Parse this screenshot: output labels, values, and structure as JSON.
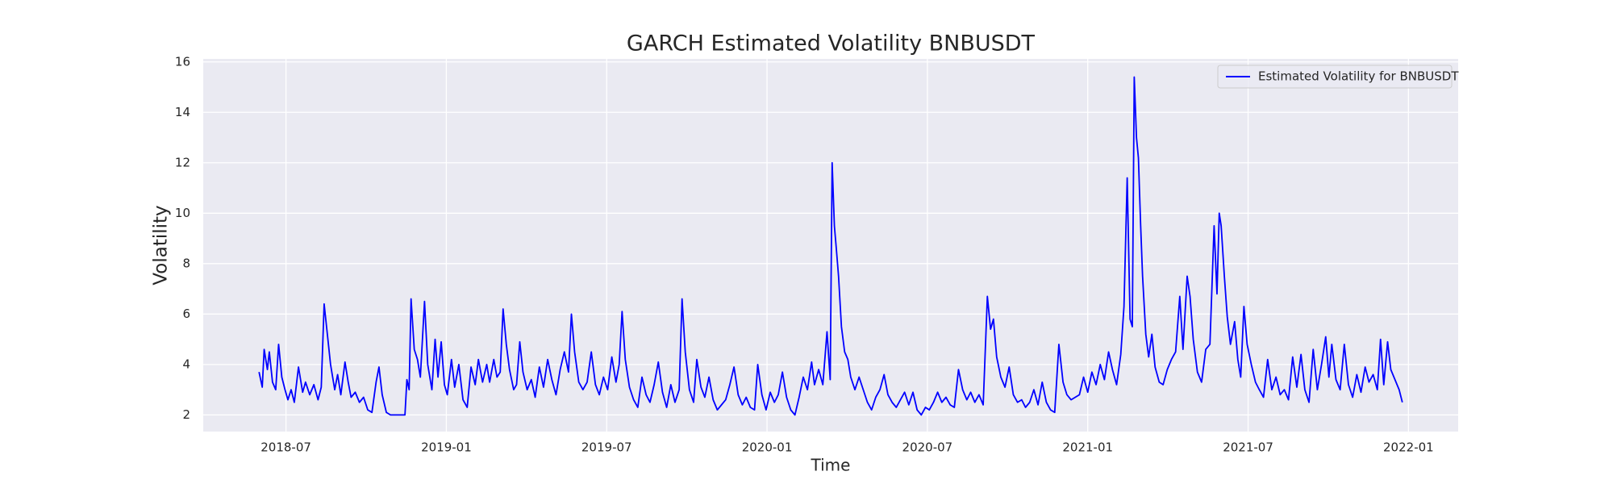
{
  "chart_data": {
    "type": "line",
    "title": "GARCH Estimated Volatility BNBUSDT",
    "xlabel": "Time",
    "ylabel": "Volatility",
    "x": [
      2018.416,
      2018.426,
      2018.432,
      2018.442,
      2018.448,
      2018.458,
      2018.468,
      2018.477,
      2018.487,
      2018.497,
      2018.506,
      2018.516,
      2018.526,
      2018.539,
      2018.552,
      2018.561,
      2018.574,
      2018.587,
      2018.6,
      2018.61,
      2018.619,
      2018.629,
      2018.639,
      2018.652,
      2018.661,
      2018.671,
      2018.684,
      2018.694,
      2018.703,
      2018.716,
      2018.729,
      2018.742,
      2018.755,
      2018.768,
      2018.781,
      2018.79,
      2018.8,
      2018.813,
      2018.826,
      2018.842,
      2018.858,
      2018.871,
      2018.877,
      2018.884,
      2018.89,
      2018.9,
      2018.91,
      2018.919,
      2018.932,
      2018.942,
      2018.955,
      2018.965,
      2018.974,
      2018.984,
      2018.994,
      2019.003,
      2019.016,
      2019.026,
      2019.039,
      2019.052,
      2019.065,
      2019.077,
      2019.09,
      2019.1,
      2019.113,
      2019.126,
      2019.135,
      2019.148,
      2019.158,
      2019.168,
      2019.177,
      2019.187,
      2019.197,
      2019.21,
      2019.219,
      2019.229,
      2019.239,
      2019.252,
      2019.265,
      2019.277,
      2019.29,
      2019.303,
      2019.316,
      2019.329,
      2019.342,
      2019.355,
      2019.368,
      2019.381,
      2019.39,
      2019.4,
      2019.413,
      2019.426,
      2019.439,
      2019.452,
      2019.465,
      2019.477,
      2019.49,
      2019.503,
      2019.516,
      2019.529,
      2019.539,
      2019.548,
      2019.558,
      2019.571,
      2019.584,
      2019.597,
      2019.61,
      2019.623,
      2019.635,
      2019.648,
      2019.661,
      2019.674,
      2019.687,
      2019.7,
      2019.713,
      2019.726,
      2019.735,
      2019.745,
      2019.758,
      2019.771,
      2019.781,
      2019.794,
      2019.806,
      2019.819,
      2019.832,
      2019.845,
      2019.858,
      2019.871,
      2019.884,
      2019.897,
      2019.91,
      2019.923,
      2019.935,
      2019.948,
      2019.961,
      2019.971,
      2019.984,
      2019.997,
      2020.01,
      2020.023,
      2020.035,
      2020.048,
      2020.061,
      2020.074,
      2020.087,
      2020.1,
      2020.113,
      2020.126,
      2020.139,
      2020.148,
      2020.161,
      2020.174,
      2020.187,
      2020.197,
      2020.203,
      2020.21,
      2020.216,
      2020.223,
      2020.232,
      2020.242,
      2020.252,
      2020.261,
      2020.274,
      2020.287,
      2020.3,
      2020.313,
      2020.326,
      2020.339,
      2020.352,
      2020.365,
      2020.377,
      2020.39,
      2020.403,
      2020.416,
      2020.429,
      2020.442,
      2020.455,
      2020.468,
      2020.481,
      2020.494,
      2020.506,
      2020.519,
      2020.532,
      2020.545,
      2020.558,
      2020.571,
      2020.584,
      2020.597,
      2020.61,
      2020.623,
      2020.635,
      2020.648,
      2020.661,
      2020.674,
      2020.687,
      2020.697,
      2020.706,
      2020.716,
      2020.729,
      2020.742,
      2020.755,
      2020.768,
      2020.781,
      2020.794,
      2020.806,
      2020.819,
      2020.832,
      2020.845,
      2020.858,
      2020.871,
      2020.884,
      2020.897,
      2020.91,
      2020.923,
      2020.935,
      2020.948,
      2020.961,
      2020.974,
      2020.987,
      2021.0,
      2021.013,
      2021.026,
      2021.039,
      2021.052,
      2021.065,
      2021.077,
      2021.09,
      2021.103,
      2021.113,
      2021.123,
      2021.132,
      2021.139,
      2021.145,
      2021.152,
      2021.158,
      2021.165,
      2021.171,
      2021.181,
      2021.19,
      2021.2,
      2021.21,
      2021.223,
      2021.235,
      2021.248,
      2021.261,
      2021.274,
      2021.287,
      2021.297,
      2021.31,
      2021.319,
      2021.329,
      2021.342,
      2021.355,
      2021.368,
      2021.381,
      2021.394,
      2021.403,
      2021.41,
      2021.416,
      2021.426,
      2021.435,
      2021.445,
      2021.458,
      2021.468,
      2021.477,
      2021.487,
      2021.497,
      2021.51,
      2021.523,
      2021.535,
      2021.548,
      2021.561,
      2021.574,
      2021.587,
      2021.6,
      2021.613,
      2021.626,
      2021.639,
      2021.652,
      2021.665,
      2021.677,
      2021.69,
      2021.703,
      2021.716,
      2021.729,
      2021.742,
      2021.752,
      2021.761,
      2021.774,
      2021.787,
      2021.8,
      2021.813,
      2021.826,
      2021.839,
      2021.852,
      2021.865,
      2021.877,
      2021.89,
      2021.903,
      2021.913,
      2021.923,
      2021.935,
      2021.945,
      2021.958,
      2021.971,
      2021.981
    ],
    "series": [
      {
        "name": "Estimated Volatility for BNBUSDT",
        "color": "#0000ff",
        "values": [
          3.7,
          3.1,
          4.6,
          3.8,
          4.5,
          3.3,
          3.0,
          4.8,
          3.5,
          3.0,
          2.6,
          3.0,
          2.5,
          3.9,
          2.9,
          3.3,
          2.8,
          3.2,
          2.6,
          3.1,
          6.4,
          5.2,
          4.0,
          3.0,
          3.6,
          2.8,
          4.1,
          3.3,
          2.7,
          2.9,
          2.5,
          2.7,
          2.2,
          2.1,
          3.3,
          3.9,
          2.8,
          2.1,
          2.0,
          2.0,
          2.0,
          2.0,
          3.4,
          3.0,
          6.6,
          4.6,
          4.2,
          3.5,
          6.5,
          4.0,
          3.0,
          5.0,
          3.5,
          4.9,
          3.2,
          2.8,
          4.2,
          3.1,
          4.0,
          2.6,
          2.3,
          3.9,
          3.2,
          4.2,
          3.3,
          4.0,
          3.3,
          4.2,
          3.5,
          3.7,
          6.2,
          4.8,
          3.8,
          3.0,
          3.2,
          4.9,
          3.7,
          3.0,
          3.4,
          2.7,
          3.9,
          3.1,
          4.2,
          3.4,
          2.8,
          3.8,
          4.5,
          3.7,
          6.0,
          4.5,
          3.3,
          3.0,
          3.3,
          4.5,
          3.2,
          2.8,
          3.5,
          3.0,
          4.3,
          3.3,
          4.0,
          6.1,
          4.2,
          3.1,
          2.6,
          2.3,
          3.5,
          2.8,
          2.5,
          3.2,
          4.1,
          2.9,
          2.3,
          3.2,
          2.5,
          3.0,
          6.6,
          4.5,
          3.0,
          2.5,
          4.2,
          3.1,
          2.7,
          3.5,
          2.6,
          2.2,
          2.4,
          2.6,
          3.2,
          3.9,
          2.8,
          2.4,
          2.7,
          2.3,
          2.2,
          4.0,
          2.8,
          2.2,
          2.9,
          2.5,
          2.8,
          3.7,
          2.7,
          2.2,
          2.0,
          2.7,
          3.5,
          3.0,
          4.1,
          3.2,
          3.8,
          3.2,
          5.3,
          3.4,
          12.0,
          9.5,
          8.6,
          7.5,
          5.5,
          4.5,
          4.2,
          3.5,
          3.0,
          3.5,
          3.0,
          2.5,
          2.2,
          2.7,
          3.0,
          3.6,
          2.8,
          2.5,
          2.3,
          2.6,
          2.9,
          2.4,
          2.9,
          2.2,
          2.0,
          2.3,
          2.2,
          2.5,
          2.9,
          2.5,
          2.7,
          2.4,
          2.3,
          3.8,
          3.0,
          2.6,
          2.9,
          2.5,
          2.8,
          2.4,
          6.7,
          5.4,
          5.8,
          4.3,
          3.5,
          3.1,
          3.9,
          2.8,
          2.5,
          2.6,
          2.3,
          2.5,
          3.0,
          2.4,
          3.3,
          2.5,
          2.2,
          2.1,
          4.8,
          3.3,
          2.8,
          2.6,
          2.7,
          2.8,
          3.5,
          2.9,
          3.7,
          3.2,
          4.0,
          3.4,
          4.5,
          3.8,
          3.2,
          4.4,
          6.3,
          11.4,
          5.8,
          5.5,
          15.4,
          13.0,
          12.2,
          9.5,
          7.5,
          5.2,
          4.3,
          5.2,
          3.9,
          3.3,
          3.2,
          3.8,
          4.2,
          4.5,
          6.7,
          4.6,
          7.5,
          6.7,
          5.0,
          3.7,
          3.3,
          4.6,
          4.8,
          9.5,
          6.8,
          10.0,
          9.5,
          7.5,
          5.9,
          4.8,
          5.7,
          4.2,
          3.5,
          6.3,
          4.8,
          4.0,
          3.3,
          3.0,
          2.7,
          4.2,
          3.0,
          3.5,
          2.8,
          3.0,
          2.6,
          4.3,
          3.1,
          4.4,
          3.0,
          2.5,
          4.6,
          3.0,
          4.0,
          5.1,
          3.5,
          4.8,
          3.4,
          3.0,
          4.8,
          3.2,
          2.7,
          3.6,
          2.9,
          3.9,
          3.3,
          3.6,
          3.0,
          5.0,
          3.2,
          4.9,
          3.8,
          3.4,
          3.0,
          2.5
        ]
      }
    ],
    "xlim": [
      2018.242,
      2022.155
    ],
    "xticks": [
      {
        "value": 2018.5,
        "label": "2018-07"
      },
      {
        "value": 2019.0,
        "label": "2019-01"
      },
      {
        "value": 2019.5,
        "label": "2019-07"
      },
      {
        "value": 2020.0,
        "label": "2020-01"
      },
      {
        "value": 2020.5,
        "label": "2020-07"
      },
      {
        "value": 2021.0,
        "label": "2021-01"
      },
      {
        "value": 2021.5,
        "label": "2021-07"
      },
      {
        "value": 2022.0,
        "label": "2022-01"
      }
    ],
    "ylim": [
      1.34,
      16.12
    ],
    "yticks": [
      2,
      4,
      6,
      8,
      10,
      12,
      14,
      16
    ],
    "grid": true,
    "legend": "upper right"
  }
}
